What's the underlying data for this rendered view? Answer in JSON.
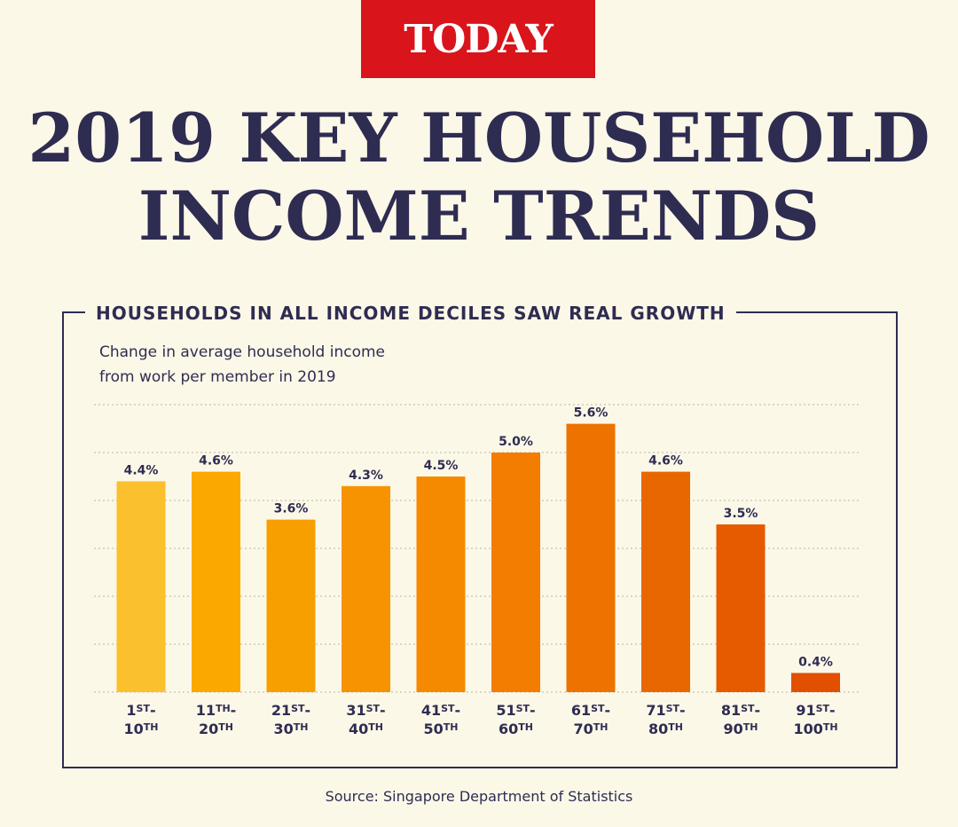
{
  "brand": {
    "logo_text": "TODAY",
    "color": "#d9141b"
  },
  "title": {
    "line1": "2019 KEY HOUSEHOLD",
    "line2": "INCOME TRENDS"
  },
  "section_title": "HOUSEHOLDS IN ALL INCOME DECILES SAW REAL GROWTH",
  "subtitle": {
    "line1": "Change in average household income",
    "line2": "from work per member in 2019"
  },
  "source": "Source: Singapore Department of Statistics",
  "colors": {
    "background": "#fcf8e8",
    "text": "#2f2c52",
    "bars": [
      "#fbc02d",
      "#fba800",
      "#f89f00",
      "#f79300",
      "#f58a00",
      "#f27d00",
      "#ee7200",
      "#e96700",
      "#e65a00",
      "#e24f00"
    ]
  },
  "chart_data": {
    "type": "bar",
    "title": "HOUSEHOLDS IN ALL INCOME DECILES SAW REAL GROWTH",
    "subtitle": "Change in average household income from work per member in 2019",
    "categories": [
      {
        "top": "1",
        "top_sup": "ST",
        "bottom": "10",
        "bottom_sup": "TH"
      },
      {
        "top": "11",
        "top_sup": "TH",
        "bottom": "20",
        "bottom_sup": "TH"
      },
      {
        "top": "21",
        "top_sup": "ST",
        "bottom": "30",
        "bottom_sup": "TH"
      },
      {
        "top": "31",
        "top_sup": "ST",
        "bottom": "40",
        "bottom_sup": "TH"
      },
      {
        "top": "41",
        "top_sup": "ST",
        "bottom": "50",
        "bottom_sup": "TH"
      },
      {
        "top": "51",
        "top_sup": "ST",
        "bottom": "60",
        "bottom_sup": "TH"
      },
      {
        "top": "61",
        "top_sup": "ST",
        "bottom": "70",
        "bottom_sup": "TH"
      },
      {
        "top": "71",
        "top_sup": "ST",
        "bottom": "80",
        "bottom_sup": "TH"
      },
      {
        "top": "81",
        "top_sup": "ST",
        "bottom": "90",
        "bottom_sup": "TH"
      },
      {
        "top": "91",
        "top_sup": "ST",
        "bottom": "100",
        "bottom_sup": "TH"
      }
    ],
    "values": [
      4.4,
      4.6,
      3.6,
      4.3,
      4.5,
      5.0,
      5.6,
      4.6,
      3.5,
      0.4
    ],
    "value_labels": [
      "4.4%",
      "4.6%",
      "3.6%",
      "4.3%",
      "4.5%",
      "5.0%",
      "5.6%",
      "4.6%",
      "3.5%",
      "0.4%"
    ],
    "ylim": [
      0,
      6
    ],
    "grid": true,
    "grid_style": "dotted"
  }
}
